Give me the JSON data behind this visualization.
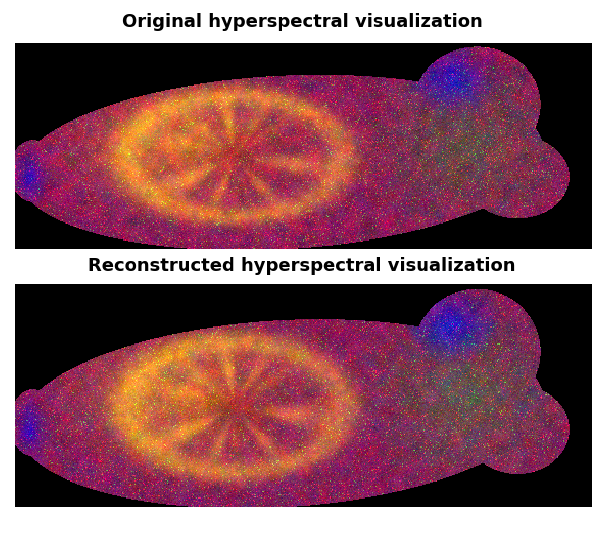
{
  "title1": "Original hyperspectral visualization",
  "title2": "Reconstructed hyperspectral visualization",
  "title_fontsize": 13,
  "title_fontweight": "bold",
  "bg_color": "#ffffff",
  "fig_width": 6.04,
  "fig_height": 5.36
}
